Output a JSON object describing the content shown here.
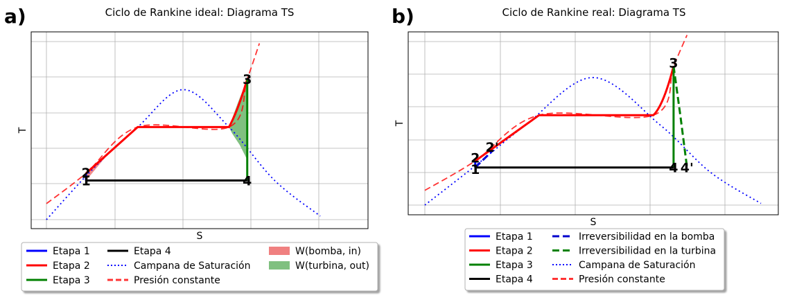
{
  "chart_data": [
    {
      "type": "line",
      "panel_letter": "a)",
      "title": "Ciclo de Rankine ideal: Diagrama TS",
      "xlabel": "S",
      "ylabel": "T",
      "grid": true,
      "xlim": [
        0,
        10
      ],
      "ylim": [
        0,
        10
      ],
      "legend_placement": "below",
      "series": [
        {
          "name": "Etapa 1",
          "color": "#0000ff",
          "style": "solid",
          "x": [
            1.3,
            1.3
          ],
          "y": [
            2.2,
            2.6
          ]
        },
        {
          "name": "Etapa 2",
          "color": "#ff0000",
          "style": "solid",
          "x": [
            1.3,
            3.0,
            6.0,
            6.3,
            6.6
          ],
          "y": [
            2.6,
            5.2,
            5.2,
            6.6,
            7.9
          ]
        },
        {
          "name": "Etapa 3",
          "color": "#008000",
          "style": "solid",
          "x": [
            6.6,
            6.6
          ],
          "y": [
            7.9,
            2.2
          ]
        },
        {
          "name": "Etapa 4",
          "color": "#000000",
          "style": "solid",
          "x": [
            1.3,
            6.6
          ],
          "y": [
            2.2,
            2.2
          ]
        },
        {
          "name": "Campana de Saturación",
          "color": "#0000ff",
          "style": "dotted",
          "x": [
            0.0,
            1.5,
            3.0,
            4.5,
            6.0,
            7.5,
            9.0
          ],
          "y": [
            0.0,
            2.8,
            5.2,
            7.3,
            5.2,
            2.2,
            0.2
          ]
        },
        {
          "name": "Presión constante",
          "color": "#ff0000",
          "style": "dashed",
          "x": [
            0.0,
            1.3,
            3.0,
            6.0,
            6.6,
            7.0
          ],
          "y": [
            0.9,
            2.6,
            5.2,
            5.2,
            7.9,
            9.9
          ]
        }
      ],
      "fills": [
        {
          "name": "W(bomba, in)",
          "color": "#f08080"
        },
        {
          "name": "W(turbina, out)",
          "color": "#80c080"
        }
      ],
      "point_labels": [
        {
          "text": "1",
          "x": 1.3,
          "y": 2.2
        },
        {
          "text": "2",
          "x": 1.3,
          "y": 2.65
        },
        {
          "text": "3",
          "x": 6.6,
          "y": 7.9
        },
        {
          "text": "4",
          "x": 6.6,
          "y": 2.2
        }
      ],
      "legend": {
        "columns": [
          [
            "Etapa 1",
            "Etapa 2",
            "Etapa 3"
          ],
          [
            "Etapa 4",
            "Campana de Saturación",
            "Presión constante"
          ],
          [
            "W(bomba, in)",
            "W(turbina, out)"
          ]
        ]
      }
    },
    {
      "type": "line",
      "panel_letter": "b)",
      "title": "Ciclo de Rankine real: Diagrama TS",
      "xlabel": "S",
      "ylabel": "T",
      "grid": true,
      "xlim": [
        0,
        10
      ],
      "ylim": [
        0,
        10
      ],
      "legend_placement": "below",
      "series": [
        {
          "name": "Etapa 1",
          "color": "#0000ff",
          "style": "solid",
          "x": [
            1.5,
            1.5
          ],
          "y": [
            2.3,
            2.7
          ]
        },
        {
          "name": "Etapa 2",
          "color": "#ff0000",
          "style": "solid",
          "x": [
            1.5,
            3.4,
            6.8,
            7.1,
            7.4
          ],
          "y": [
            2.7,
            5.5,
            5.5,
            6.6,
            8.5
          ]
        },
        {
          "name": "Etapa 3",
          "color": "#008000",
          "style": "solid",
          "x": [
            7.4,
            7.4
          ],
          "y": [
            8.5,
            2.3
          ]
        },
        {
          "name": "Etapa 4",
          "color": "#000000",
          "style": "solid",
          "x": [
            1.5,
            7.4
          ],
          "y": [
            2.3,
            2.3
          ]
        },
        {
          "name": "Irreversibilidad en la bomba",
          "color": "#0000cc",
          "style": "dashed",
          "x": [
            1.5,
            2.0
          ],
          "y": [
            2.3,
            3.3
          ]
        },
        {
          "name": "Irreversibilidad en la turbina",
          "color": "#008000",
          "style": "dashed",
          "x": [
            7.4,
            7.6,
            7.8
          ],
          "y": [
            8.5,
            5.5,
            2.3
          ]
        },
        {
          "name": "Campana de Saturación",
          "color": "#0000ff",
          "style": "dotted",
          "x": [
            0.0,
            1.5,
            3.0,
            5.0,
            7.0,
            8.5,
            10.0
          ],
          "y": [
            0.0,
            2.4,
            4.9,
            7.8,
            4.9,
            2.0,
            0.1
          ]
        },
        {
          "name": "Presión constante",
          "color": "#ff0000",
          "style": "dashed",
          "x": [
            0.0,
            1.5,
            3.4,
            6.8,
            7.4,
            7.8
          ],
          "y": [
            0.9,
            2.7,
            5.5,
            5.5,
            8.5,
            10.4
          ]
        }
      ],
      "point_labels": [
        {
          "text": "1",
          "x": 1.5,
          "y": 2.2
        },
        {
          "text": "2",
          "x": 1.5,
          "y": 2.9
        },
        {
          "text": "2'",
          "x": 2.0,
          "y": 3.55
        },
        {
          "text": "3",
          "x": 7.4,
          "y": 8.7
        },
        {
          "text": "4",
          "x": 7.4,
          "y": 2.3
        },
        {
          "text": "4'",
          "x": 7.8,
          "y": 2.3
        }
      ],
      "legend": {
        "columns": [
          [
            "Etapa 1",
            "Etapa 2",
            "Etapa 3",
            "Etapa 4"
          ],
          [
            "Irreversibilidad en la bomba",
            "Irreversibilidad en la turbina",
            "Campana de Saturación",
            "Presión constante"
          ]
        ]
      }
    }
  ]
}
